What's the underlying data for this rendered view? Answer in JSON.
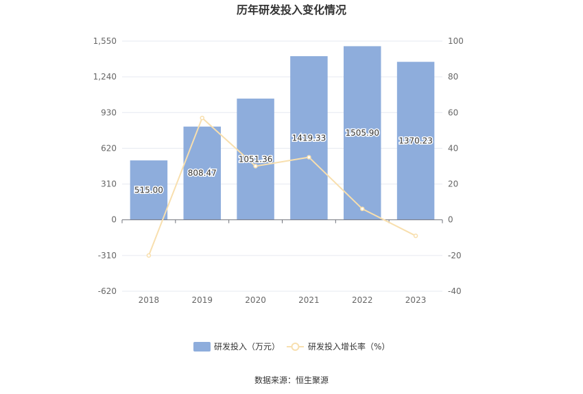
{
  "chart_data": {
    "type": "bar",
    "title": "历年研发投入变化情况",
    "categories": [
      "2018",
      "2019",
      "2020",
      "2021",
      "2022",
      "2023"
    ],
    "series": [
      {
        "name": "研发投入（万元）",
        "type": "bar",
        "axis": "left",
        "values": [
          515.0,
          808.47,
          1051.36,
          1419.33,
          1505.9,
          1370.23
        ],
        "labels": [
          "515.00",
          "808.47",
          "1051.36",
          "1419.33",
          "1505.90",
          "1370.23"
        ],
        "color": "#8eaddc"
      },
      {
        "name": "研发投入增长率（%）",
        "type": "line",
        "axis": "right",
        "values": [
          -20.0,
          57.0,
          30.0,
          35.0,
          6.1,
          -9.0
        ],
        "color": "#f8dfae"
      }
    ],
    "y_left": {
      "range": [
        -620,
        1550
      ],
      "ticks": [
        1550,
        1240,
        930,
        620,
        310,
        0,
        -310,
        -620
      ],
      "tick_labels": [
        "1,550",
        "1,240",
        "930",
        "620",
        "310",
        "0",
        "-310",
        "-620"
      ]
    },
    "y_right": {
      "range": [
        -40,
        100
      ],
      "ticks": [
        100,
        80,
        60,
        40,
        20,
        0,
        -20,
        -40
      ],
      "tick_labels": [
        "100",
        "80",
        "60",
        "40",
        "20",
        "0",
        "-20",
        "-40"
      ]
    },
    "grid": true,
    "legend_position": "bottom-center"
  },
  "source": "数据来源：恒生聚源"
}
